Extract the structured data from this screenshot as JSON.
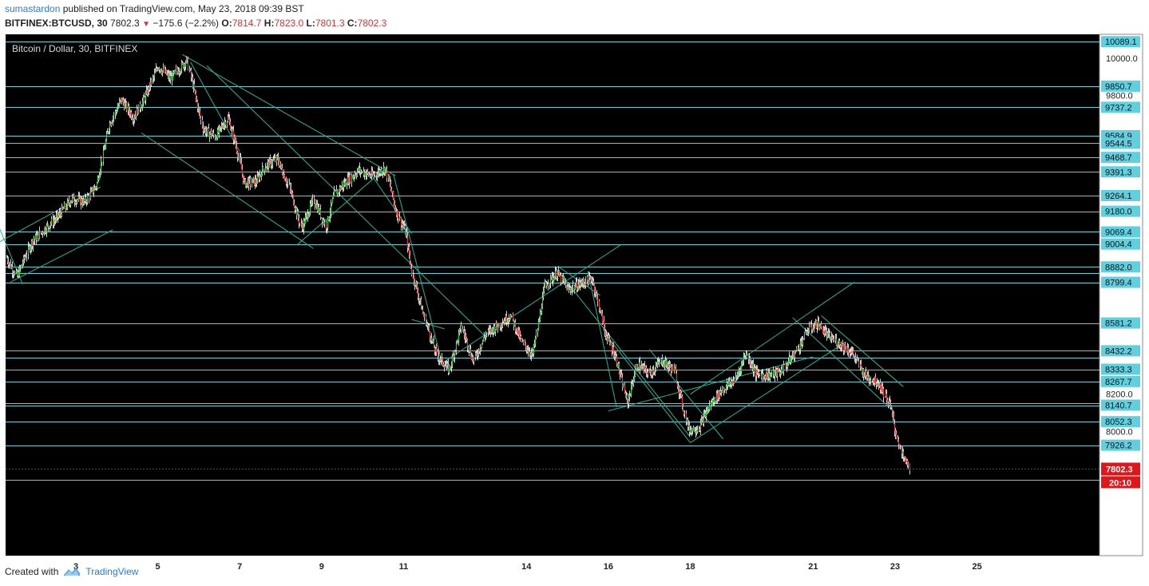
{
  "header": {
    "author": "sumastardon",
    "published_text": "published on TradingView.com, May 23, 2018 09:39 BST",
    "symbol": "BITFINEX:BTCUSD, 30",
    "last": "7802.3",
    "change": "−175.6 (−2.2%)",
    "o_label": "O:",
    "o_value": "7814.7",
    "h_label": "H:",
    "h_value": "7823.0",
    "l_label": "L:",
    "l_value": "7801.3",
    "c_label": "C:",
    "c_value": "7802.3"
  },
  "footer": {
    "created_with": "Created with",
    "brand": "TradingView",
    "brand_icon": "tradingview-logo-icon"
  },
  "colors": {
    "background": "#000000",
    "level_line": "#5fd0e0",
    "trend_line": "#1fb89a",
    "up": "#2ecc40",
    "down": "#e03a3a",
    "wick": "#ffffff",
    "last_price": "#e0161b",
    "axis_text": "#222222",
    "label_bg": "#5fd0e0"
  },
  "chart_data": {
    "type": "candlestick",
    "title": "Bitcoin / Dollar, 30, BITFINEX",
    "y_scale": "linear",
    "ylim": [
      7650,
      10180
    ],
    "x_ticks": [
      {
        "label": "3",
        "t": 3.0
      },
      {
        "label": "5",
        "t": 5.0
      },
      {
        "label": "7",
        "t": 7.0
      },
      {
        "label": "9",
        "t": 9.0
      },
      {
        "label": "11",
        "t": 11.0
      },
      {
        "label": "14",
        "t": 14.0
      },
      {
        "label": "16",
        "t": 16.0
      },
      {
        "label": "18",
        "t": 18.0
      },
      {
        "label": "21",
        "t": 21.0
      },
      {
        "label": "23",
        "t": 23.0
      },
      {
        "label": "25",
        "t": 25.0
      }
    ],
    "price_path": [
      [
        1.3,
        8930
      ],
      [
        1.55,
        8830
      ],
      [
        1.9,
        9010
      ],
      [
        2.25,
        9090
      ],
      [
        2.55,
        9150
      ],
      [
        2.9,
        9250
      ],
      [
        3.2,
        9230
      ],
      [
        3.5,
        9320
      ],
      [
        3.8,
        9640
      ],
      [
        4.1,
        9780
      ],
      [
        4.4,
        9680
      ],
      [
        4.7,
        9800
      ],
      [
        5.0,
        9960
      ],
      [
        5.3,
        9890
      ],
      [
        5.7,
        9990
      ],
      [
        5.9,
        9810
      ],
      [
        6.1,
        9620
      ],
      [
        6.4,
        9580
      ],
      [
        6.7,
        9680
      ],
      [
        6.9,
        9540
      ],
      [
        7.1,
        9330
      ],
      [
        7.4,
        9340
      ],
      [
        7.6,
        9420
      ],
      [
        7.9,
        9460
      ],
      [
        8.2,
        9310
      ],
      [
        8.5,
        9090
      ],
      [
        8.8,
        9240
      ],
      [
        9.1,
        9100
      ],
      [
        9.3,
        9270
      ],
      [
        9.6,
        9340
      ],
      [
        9.9,
        9400
      ],
      [
        10.2,
        9370
      ],
      [
        10.55,
        9410
      ],
      [
        10.8,
        9190
      ],
      [
        11.05,
        9060
      ],
      [
        11.2,
        8850
      ],
      [
        11.5,
        8610
      ],
      [
        11.8,
        8410
      ],
      [
        12.1,
        8330
      ],
      [
        12.4,
        8560
      ],
      [
        12.7,
        8380
      ],
      [
        13.0,
        8520
      ],
      [
        13.3,
        8570
      ],
      [
        13.6,
        8620
      ],
      [
        13.9,
        8470
      ],
      [
        14.15,
        8410
      ],
      [
        14.45,
        8790
      ],
      [
        14.75,
        8850
      ],
      [
        15.0,
        8760
      ],
      [
        15.3,
        8790
      ],
      [
        15.6,
        8820
      ],
      [
        15.9,
        8540
      ],
      [
        16.2,
        8380
      ],
      [
        16.45,
        8150
      ],
      [
        16.7,
        8360
      ],
      [
        17.0,
        8310
      ],
      [
        17.3,
        8380
      ],
      [
        17.6,
        8330
      ],
      [
        17.95,
        8010
      ],
      [
        18.2,
        8020
      ],
      [
        18.5,
        8150
      ],
      [
        18.8,
        8230
      ],
      [
        19.1,
        8280
      ],
      [
        19.35,
        8420
      ],
      [
        19.6,
        8310
      ],
      [
        19.9,
        8300
      ],
      [
        20.2,
        8320
      ],
      [
        20.55,
        8420
      ],
      [
        20.85,
        8540
      ],
      [
        21.1,
        8580
      ],
      [
        21.35,
        8510
      ],
      [
        21.65,
        8470
      ],
      [
        21.95,
        8420
      ],
      [
        22.25,
        8300
      ],
      [
        22.6,
        8260
      ],
      [
        22.9,
        8120
      ],
      [
        23.0,
        8000
      ],
      [
        23.15,
        7880
      ],
      [
        23.35,
        7802.3
      ]
    ],
    "horizontal_levels": [
      10089.1,
      9850.7,
      9737.2,
      9584.9,
      9544.5,
      9468.7,
      9391.3,
      9264.1,
      9180.0,
      9069.4,
      9004.4,
      8882.0,
      8850.0,
      8799.4,
      8581.2,
      8432.2,
      8395.0,
      8333.3,
      8267.7,
      8150.0,
      8140.7,
      8052.3,
      7926.2,
      7740.0
    ],
    "level_labels": [
      "10089.1",
      "9850.7",
      "9737.2",
      "9584.9",
      "9544.5",
      "9468.7",
      "9391.3",
      "9264.1",
      "9180.0",
      "9069.4",
      "9004.4",
      "8882.0",
      "8799.4",
      "8581.2",
      "8432.2",
      "8333.3",
      "8267.7",
      "8140.7",
      "8052.3",
      "7926.2"
    ],
    "axis_round_labels": [
      "10000.0",
      "9800.0",
      "8000.0",
      "8200.0"
    ],
    "trend_lines": [
      [
        1.0,
        9160,
        1.7,
        8790
      ],
      [
        1.0,
        9000,
        3.6,
        9310
      ],
      [
        1.4,
        8800,
        3.9,
        9080
      ],
      [
        4.6,
        9600,
        8.8,
        8980
      ],
      [
        5.6,
        10020,
        10.8,
        9370
      ],
      [
        5.8,
        9980,
        7.0,
        9500
      ],
      [
        6.2,
        9960,
        13.0,
        8510
      ],
      [
        8.4,
        9000,
        10.5,
        9400
      ],
      [
        10.2,
        9380,
        11.2,
        9060
      ],
      [
        10.75,
        9380,
        11.95,
        8360
      ],
      [
        11.9,
        8360,
        16.3,
        9000
      ],
      [
        11.2,
        8600,
        12.0,
        8550
      ],
      [
        14.8,
        8880,
        15.8,
        8730
      ],
      [
        15.5,
        8860,
        16.2,
        8130
      ],
      [
        14.7,
        8880,
        18.0,
        7970
      ],
      [
        15.9,
        8530,
        18.0,
        7940
      ],
      [
        17.0,
        8440,
        18.8,
        7960
      ],
      [
        16.0,
        8110,
        21.0,
        8400
      ],
      [
        18.0,
        7940,
        21.8,
        8480
      ],
      [
        18.0,
        8200,
        22.0,
        8800
      ],
      [
        20.5,
        8610,
        22.9,
        8120
      ],
      [
        21.2,
        8620,
        23.2,
        8240
      ]
    ],
    "last_price": 7802.3,
    "last_price_label": "7802.3",
    "countdown_label": "20:10"
  }
}
